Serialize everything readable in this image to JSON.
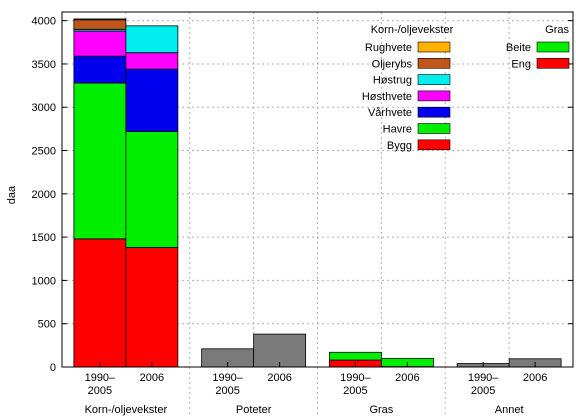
{
  "chart_data": {
    "type": "bar",
    "stacked": true,
    "ylabel": "daa",
    "ylim": [
      0,
      4100
    ],
    "yticks": [
      0,
      500,
      1000,
      1500,
      2000,
      2500,
      3000,
      3500,
      4000
    ],
    "grid": true,
    "groups": [
      {
        "name": "Korn-/oljevekster",
        "bars": [
          {
            "label": [
              "1990–",
              "2005"
            ],
            "segments": [
              {
                "series": "Bygg",
                "value": 1480
              },
              {
                "series": "Havre",
                "value": 1800
              },
              {
                "series": "Vårhvete",
                "value": 310
              },
              {
                "series": "Høsthvete",
                "value": 290
              },
              {
                "series": "Høstrug",
                "value": 20
              },
              {
                "series": "Oljerybs",
                "value": 110
              },
              {
                "series": "Rughvete",
                "value": 10
              }
            ]
          },
          {
            "label": [
              "2006"
            ],
            "segments": [
              {
                "series": "Bygg",
                "value": 1380
              },
              {
                "series": "Havre",
                "value": 1340
              },
              {
                "series": "Vårhvete",
                "value": 720
              },
              {
                "series": "Høsthvete",
                "value": 190
              },
              {
                "series": "Høstrug",
                "value": 310
              }
            ]
          }
        ]
      },
      {
        "name": "Poteter",
        "bars": [
          {
            "label": [
              "1990–",
              "2005"
            ],
            "segments": [
              {
                "series": "Poteter",
                "value": 210
              }
            ]
          },
          {
            "label": [
              "2006"
            ],
            "segments": [
              {
                "series": "Poteter",
                "value": 380
              }
            ]
          }
        ]
      },
      {
        "name": "Gras",
        "bars": [
          {
            "label": [
              "1990–",
              "2005"
            ],
            "segments": [
              {
                "series": "Eng",
                "value": 80
              },
              {
                "series": "Beite",
                "value": 90
              }
            ]
          },
          {
            "label": [
              "2006"
            ],
            "segments": [
              {
                "series": "Eng",
                "value": 5
              },
              {
                "series": "Beite",
                "value": 95
              }
            ]
          }
        ]
      },
      {
        "name": "Annet",
        "bars": [
          {
            "label": [
              "1990–",
              "2005"
            ],
            "segments": [
              {
                "series": "Annet",
                "value": 40
              }
            ]
          },
          {
            "label": [
              "2006"
            ],
            "segments": [
              {
                "series": "Annet",
                "value": 95
              }
            ]
          }
        ]
      }
    ],
    "colors": {
      "Bygg": "#ff0000",
      "Havre": "#00ee00",
      "Vårhvete": "#0000ee",
      "Høsthvete": "#ff00ff",
      "Høstrug": "#00eeee",
      "Oljerybs": "#c0561c",
      "Rughvete": "#ffb000",
      "Eng": "#ff0000",
      "Beite": "#00ee00",
      "Poteter": "#7a7a7a",
      "Annet": "#7a7a7a"
    },
    "legend": {
      "placement": "top-right",
      "groups": [
        {
          "title": "Korn-/oljevekster",
          "entries": [
            "Rughvete",
            "Oljerybs",
            "Høstrug",
            "Høsthvete",
            "Vårhvete",
            "Havre",
            "Bygg"
          ]
        },
        {
          "title": "Gras",
          "entries": [
            "Beite",
            "Eng"
          ]
        }
      ]
    }
  }
}
